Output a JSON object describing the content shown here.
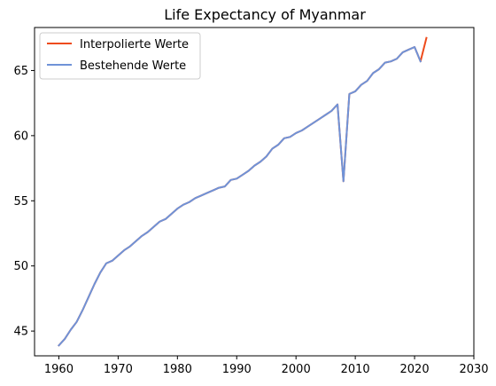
{
  "chart_data": {
    "type": "line",
    "title": "Life Expectancy of Myanmar",
    "xlabel": "",
    "ylabel": "",
    "xlim": [
      1955.9,
      2030
    ],
    "ylim": [
      43.1,
      68.3
    ],
    "xticks": [
      1960,
      1970,
      1980,
      1990,
      2000,
      2010,
      2020,
      2030
    ],
    "yticks": [
      45,
      50,
      55,
      60,
      65
    ],
    "legend_position": "top-left",
    "series": [
      {
        "name": "Interpolierte Werte",
        "color": "#ee4b1c",
        "x": [
          1960,
          1961,
          1962,
          1963,
          1964,
          1965,
          1966,
          1967,
          1968,
          1969,
          1970,
          1971,
          1972,
          1973,
          1974,
          1975,
          1976,
          1977,
          1978,
          1979,
          1980,
          1981,
          1982,
          1983,
          1984,
          1985,
          1986,
          1987,
          1988,
          1989,
          1990,
          1991,
          1992,
          1993,
          1994,
          1995,
          1996,
          1997,
          1998,
          1999,
          2000,
          2001,
          2002,
          2003,
          2004,
          2005,
          2006,
          2007,
          2008,
          2009,
          2010,
          2011,
          2012,
          2013,
          2014,
          2015,
          2016,
          2017,
          2018,
          2019,
          2020,
          2021,
          2022
        ],
        "y": [
          43.9,
          44.4,
          45.1,
          45.7,
          46.6,
          47.6,
          48.6,
          49.5,
          50.2,
          50.4,
          50.8,
          51.2,
          51.5,
          51.9,
          52.3,
          52.6,
          53.0,
          53.4,
          53.6,
          54.0,
          54.4,
          54.7,
          54.9,
          55.2,
          55.4,
          55.6,
          55.8,
          56.0,
          56.1,
          56.6,
          56.7,
          57.0,
          57.3,
          57.7,
          58.0,
          58.4,
          59.0,
          59.3,
          59.8,
          59.9,
          60.2,
          60.4,
          60.7,
          61.0,
          61.3,
          61.6,
          61.9,
          62.4,
          56.5,
          63.2,
          63.4,
          63.9,
          64.2,
          64.8,
          65.1,
          65.6,
          65.7,
          65.9,
          66.4,
          66.6,
          66.8,
          65.7,
          67.5
        ]
      },
      {
        "name": "Bestehende Werte",
        "color": "#6f93d8",
        "x": [
          1960,
          1961,
          1962,
          1963,
          1964,
          1965,
          1966,
          1967,
          1968,
          1969,
          1970,
          1971,
          1972,
          1973,
          1974,
          1975,
          1976,
          1977,
          1978,
          1979,
          1980,
          1981,
          1982,
          1983,
          1984,
          1985,
          1986,
          1987,
          1988,
          1989,
          1990,
          1991,
          1992,
          1993,
          1994,
          1995,
          1996,
          1997,
          1998,
          1999,
          2000,
          2001,
          2002,
          2003,
          2004,
          2005,
          2006,
          2007,
          2008,
          2009,
          2010,
          2011,
          2012,
          2013,
          2014,
          2015,
          2016,
          2017,
          2018,
          2019,
          2020,
          2021
        ],
        "y": [
          43.9,
          44.4,
          45.1,
          45.7,
          46.6,
          47.6,
          48.6,
          49.5,
          50.2,
          50.4,
          50.8,
          51.2,
          51.5,
          51.9,
          52.3,
          52.6,
          53.0,
          53.4,
          53.6,
          54.0,
          54.4,
          54.7,
          54.9,
          55.2,
          55.4,
          55.6,
          55.8,
          56.0,
          56.1,
          56.6,
          56.7,
          57.0,
          57.3,
          57.7,
          58.0,
          58.4,
          59.0,
          59.3,
          59.8,
          59.9,
          60.2,
          60.4,
          60.7,
          61.0,
          61.3,
          61.6,
          61.9,
          62.4,
          56.5,
          63.2,
          63.4,
          63.9,
          64.2,
          64.8,
          65.1,
          65.6,
          65.7,
          65.9,
          66.4,
          66.6,
          66.8,
          65.7
        ]
      }
    ]
  }
}
